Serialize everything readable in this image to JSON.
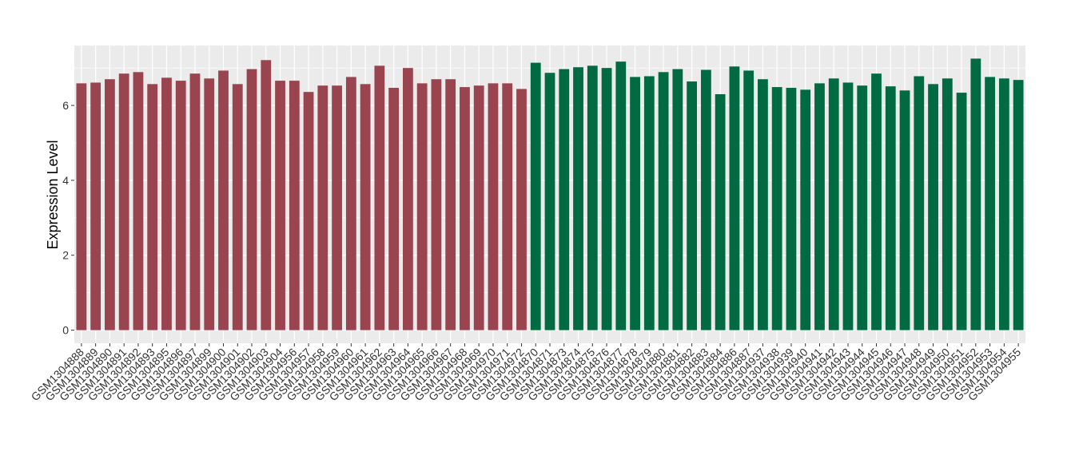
{
  "chart_data": {
    "type": "bar",
    "y_label": "Expression Level",
    "categories": [
      "GSM1304888",
      "GSM1304889",
      "GSM1304890",
      "GSM1304891",
      "GSM1304892",
      "GSM1304893",
      "GSM1304895",
      "GSM1304896",
      "GSM1304897",
      "GSM1304899",
      "GSM1304900",
      "GSM1304901",
      "GSM1304902",
      "GSM1304903",
      "GSM1304904",
      "GSM1304956",
      "GSM1304957",
      "GSM1304958",
      "GSM1304959",
      "GSM1304960",
      "GSM1304961",
      "GSM1304962",
      "GSM1304963",
      "GSM1304964",
      "GSM1304965",
      "GSM1304966",
      "GSM1304967",
      "GSM1304968",
      "GSM1304969",
      "GSM1304970",
      "GSM1304971",
      "GSM1304972",
      "GSM1304870",
      "GSM1304871",
      "GSM1304873",
      "GSM1304874",
      "GSM1304875",
      "GSM1304876",
      "GSM1304877",
      "GSM1304878",
      "GSM1304879",
      "GSM1304880",
      "GSM1304881",
      "GSM1304882",
      "GSM1304883",
      "GSM1304884",
      "GSM1304886",
      "GSM1304887",
      "GSM1304937",
      "GSM1304938",
      "GSM1304939",
      "GSM1304940",
      "GSM1304941",
      "GSM1304942",
      "GSM1304943",
      "GSM1304944",
      "GSM1304945",
      "GSM1304946",
      "GSM1304947",
      "GSM1304948",
      "GSM1304949",
      "GSM1304950",
      "GSM1304951",
      "GSM1304952",
      "GSM1304953",
      "GSM1304954",
      "GSM1304955"
    ],
    "values": [
      6.59,
      6.61,
      6.7,
      6.85,
      6.89,
      6.57,
      6.74,
      6.66,
      6.85,
      6.72,
      6.93,
      6.57,
      6.97,
      7.21,
      6.66,
      6.66,
      6.36,
      6.53,
      6.53,
      6.76,
      6.57,
      7.06,
      6.47,
      7.0,
      6.59,
      6.7,
      6.7,
      6.49,
      6.53,
      6.59,
      6.59,
      6.44,
      7.14,
      6.87,
      6.97,
      7.02,
      7.06,
      7.0,
      7.17,
      6.76,
      6.78,
      6.89,
      6.97,
      6.64,
      6.95,
      6.3,
      7.04,
      6.93,
      6.7,
      6.49,
      6.47,
      6.42,
      6.59,
      6.72,
      6.61,
      6.53,
      6.85,
      6.51,
      6.4,
      6.78,
      6.57,
      6.72,
      6.34,
      7.25,
      6.76,
      6.72,
      6.68
    ],
    "bar_colors": [
      "#99444f",
      "#99444f",
      "#99444f",
      "#99444f",
      "#99444f",
      "#99444f",
      "#99444f",
      "#99444f",
      "#99444f",
      "#99444f",
      "#99444f",
      "#99444f",
      "#99444f",
      "#99444f",
      "#99444f",
      "#99444f",
      "#99444f",
      "#99444f",
      "#99444f",
      "#99444f",
      "#99444f",
      "#99444f",
      "#99444f",
      "#99444f",
      "#99444f",
      "#99444f",
      "#99444f",
      "#99444f",
      "#99444f",
      "#99444f",
      "#99444f",
      "#99444f",
      "#006b42",
      "#006b42",
      "#006b42",
      "#006b42",
      "#006b42",
      "#006b42",
      "#006b42",
      "#006b42",
      "#006b42",
      "#006b42",
      "#006b42",
      "#006b42",
      "#006b42",
      "#006b42",
      "#006b42",
      "#006b42",
      "#006b42",
      "#006b42",
      "#006b42",
      "#006b42",
      "#006b42",
      "#006b42",
      "#006b42",
      "#006b42",
      "#006b42",
      "#006b42",
      "#006b42",
      "#006b42",
      "#006b42",
      "#006b42",
      "#006b42",
      "#006b42",
      "#006b42",
      "#006b42",
      "#006b42"
    ],
    "ylim": [
      -0.35,
      7.6
    ],
    "yticks": [
      0,
      2,
      4,
      6
    ],
    "minor_yticks": [
      1,
      3,
      5,
      7
    ],
    "grid": true
  }
}
